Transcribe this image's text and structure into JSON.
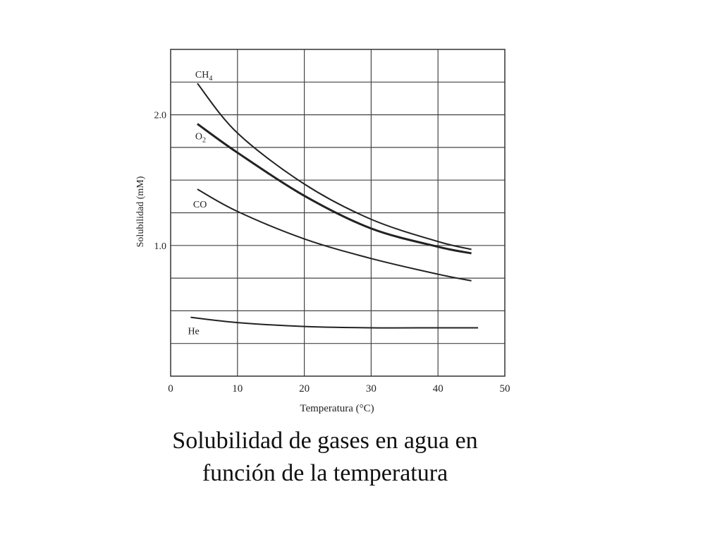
{
  "chart_data": {
    "type": "line",
    "title": "",
    "xlabel": "Temperatura (°C)",
    "ylabel": "Solubilidad (mM)",
    "xlim": [
      0,
      50
    ],
    "ylim": [
      0,
      2.5
    ],
    "x_ticks": [
      0,
      10,
      20,
      30,
      40,
      50
    ],
    "y_ticks": [
      1.0,
      2.0
    ],
    "grid": true,
    "legend": "inline labels at the left end of each curve",
    "series": [
      {
        "name": "CH4",
        "x": [
          4,
          10,
          20,
          30,
          40,
          45
        ],
        "values": [
          2.24,
          1.86,
          1.47,
          1.2,
          1.03,
          0.97
        ]
      },
      {
        "name": "O2",
        "x": [
          4,
          10,
          20,
          30,
          40,
          45
        ],
        "values": [
          1.93,
          1.71,
          1.38,
          1.13,
          0.99,
          0.94
        ]
      },
      {
        "name": "CO",
        "x": [
          4,
          10,
          20,
          30,
          40,
          45
        ],
        "values": [
          1.43,
          1.26,
          1.05,
          0.9,
          0.78,
          0.73
        ]
      },
      {
        "name": "He",
        "x": [
          3,
          10,
          20,
          30,
          40,
          46
        ],
        "values": [
          0.45,
          0.41,
          0.38,
          0.37,
          0.37,
          0.37
        ]
      }
    ]
  },
  "caption": {
    "line1": "Solubilidad de gases en agua en",
    "line2": "función de la temperatura"
  }
}
